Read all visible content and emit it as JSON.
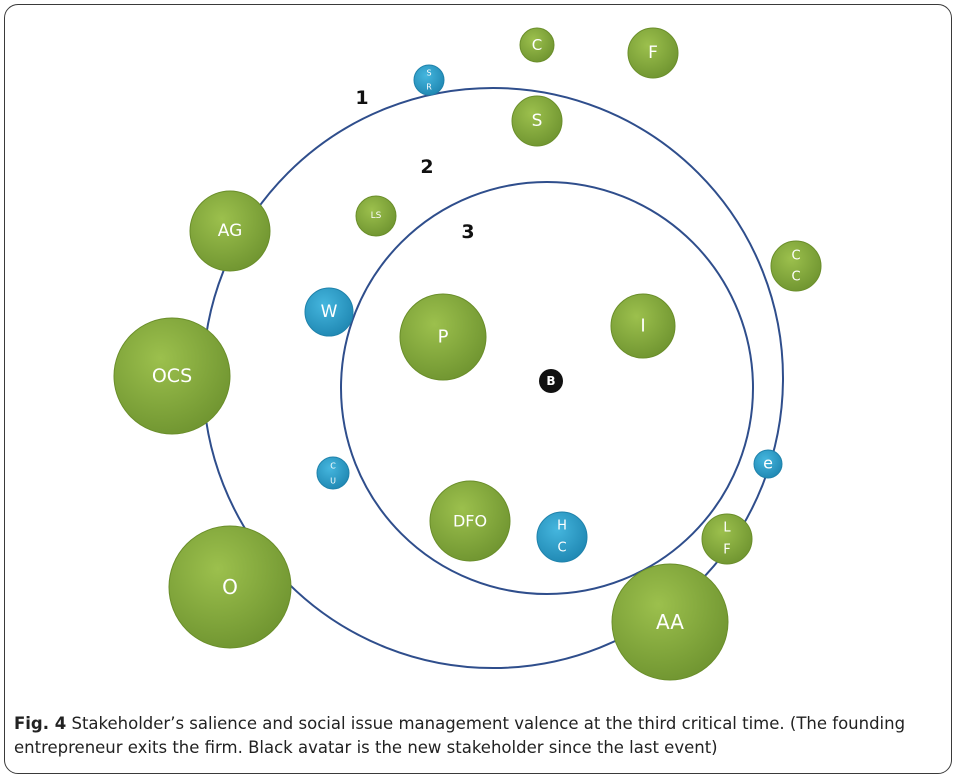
{
  "rings": [
    {
      "label": "1",
      "color": "#2f4e8c"
    },
    {
      "label": "2",
      "color": "#2f4e8c"
    },
    {
      "label": "3",
      "color": "#2f4e8c"
    }
  ],
  "colors": {
    "green": "#7fa437",
    "green_edge": "#6a8e2a",
    "blue": "#2a9cc8",
    "blue_edge": "#1f82ab",
    "black": "#111111"
  },
  "stakeholders": {
    "c_top": "C",
    "f": "F",
    "sr_line1": "S",
    "sr_line2": "R",
    "s": "S",
    "ls": "LS",
    "ag": "AG",
    "w": "W",
    "ocs": "OCS",
    "p": "P",
    "i": "I",
    "cc_line1": "C",
    "cc_line2": "C",
    "b": "B",
    "cu_line1": "C",
    "cu_line2": "U",
    "e": "e",
    "dfo": "DFO",
    "hc_line1": "H",
    "hc_line2": "C",
    "lf_line1": "L",
    "lf_line2": "F",
    "o": "O",
    "aa": "AA"
  },
  "caption": {
    "label": "Fig. 4",
    "text": " Stakeholder’s salience and social issue management valence at the third critical time. (The founding entrepreneur exits the firm. Black avatar is the new stakeholder since the last event)"
  }
}
